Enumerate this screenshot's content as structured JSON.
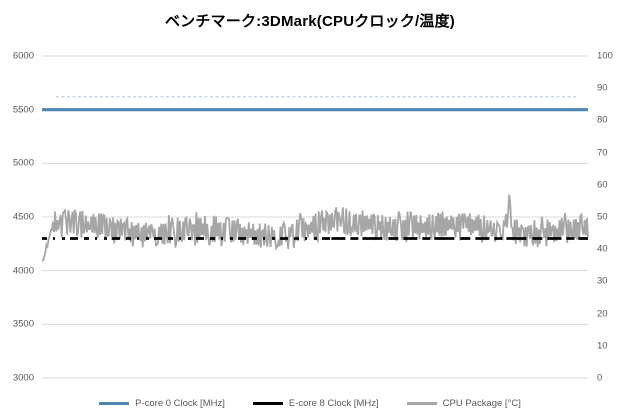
{
  "title": "ベンチマーク:3DMark(CPUクロック/温度)",
  "colors": {
    "background": "#ffffff",
    "gridline": "#d9d9d9",
    "axis_text": "#595959",
    "title_text": "#000000",
    "p_core_blue": "#4e86b4",
    "p_core_spike_faint": "#bdd0e2",
    "e_core_black": "#000000",
    "cpu_package_gray": "#a6a6a6"
  },
  "chart_data": {
    "type": "line",
    "title": "ベンチマーク:3DMark(CPUクロック/温度)",
    "xlabel": "",
    "x_axis_note": "time axis, no tick labels shown",
    "grid": "horizontal gridlines at every left-axis tick",
    "left_axis": {
      "min": 3000,
      "max": 6000,
      "step": 500,
      "ticks": [
        6000,
        5500,
        5000,
        4500,
        4000,
        3500,
        3000
      ]
    },
    "right_axis": {
      "min": 0,
      "max": 100,
      "step": 10,
      "ticks": [
        100,
        90,
        80,
        70,
        60,
        50,
        40,
        30,
        20,
        10,
        0
      ]
    },
    "legend_position": "bottom",
    "series": [
      {
        "name": "P-core 0 Clock [MHz]",
        "axis": "left",
        "color": "#4e86b4",
        "style": "flat",
        "value": 5500,
        "spike_value": 5620,
        "spike_color": "#bdd0e2",
        "description": "constant 5500 MHz across the whole run with faint brief spikes to ~5620 MHz"
      },
      {
        "name": "E-core 8 Clock [MHz]",
        "axis": "left",
        "color": "#000000",
        "style": "flat-occluded",
        "value": 4300,
        "dash_left": "5 6 2 7 3 5 8 6",
        "dash_right": "14 5 8 4 20 6 10 5",
        "description": "constant 4300 MHz; appears as broken dashes where the noisy gray temperature trace overlaps it"
      },
      {
        "name": "CPU Package [°C]",
        "axis": "right",
        "color": "#a6a6a6",
        "style": "noisy",
        "mean": 46,
        "typical_range": [
          42,
          51
        ],
        "min": 35,
        "max": 57,
        "start_value": 36,
        "spike_position": 0.855,
        "points": 500,
        "seed": 7,
        "description": "dense noisy trace oscillating mostly 42-51°C, starting near 36°C and with one spike to ~57°C near 85% of the run"
      }
    ]
  },
  "legend": {
    "entries": [
      "P-core 0 Clock [MHz]",
      "E-core 8 Clock [MHz]",
      "CPU Package [°C]"
    ]
  }
}
